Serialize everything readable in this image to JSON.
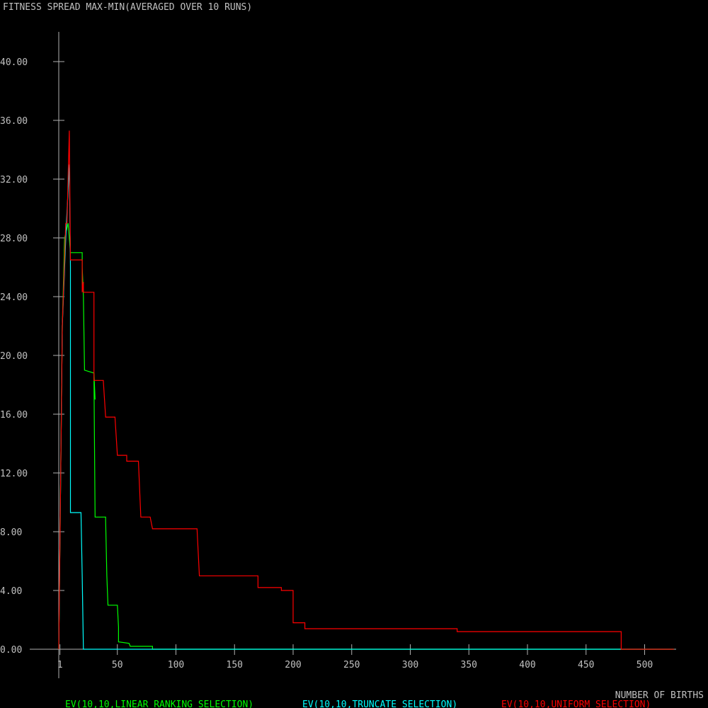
{
  "chart_data": {
    "type": "line",
    "title": "FITNESS SPREAD MAX-MIN(AVERAGED OVER 10 RUNS)",
    "xlabel": "NUMBER OF BIRTHS",
    "ylabel": "",
    "xlim": [
      -10,
      525
    ],
    "ylim": [
      0,
      43
    ],
    "x_ticks": [
      {
        "value": 1,
        "label": "1"
      },
      {
        "value": 50,
        "label": "50"
      },
      {
        "value": 100,
        "label": "100"
      },
      {
        "value": 150,
        "label": "150"
      },
      {
        "value": 200,
        "label": "200"
      },
      {
        "value": 250,
        "label": "250"
      },
      {
        "value": 300,
        "label": "300"
      },
      {
        "value": 350,
        "label": "350"
      },
      {
        "value": 400,
        "label": "400"
      },
      {
        "value": 450,
        "label": "450"
      },
      {
        "value": 500,
        "label": "500"
      }
    ],
    "y_ticks": [
      {
        "value": 0,
        "label": "0.00"
      },
      {
        "value": 4,
        "label": "4.00"
      },
      {
        "value": 8,
        "label": "8.00"
      },
      {
        "value": 12,
        "label": "12.00"
      },
      {
        "value": 16,
        "label": "16.00"
      },
      {
        "value": 20,
        "label": "20.00"
      },
      {
        "value": 24,
        "label": "24.00"
      },
      {
        "value": 28,
        "label": "28.00"
      },
      {
        "value": 32,
        "label": "32.00"
      },
      {
        "value": 36,
        "label": "36.00"
      },
      {
        "value": 40,
        "label": "40.00"
      }
    ],
    "grid": false,
    "legend_position": "bottom",
    "series": [
      {
        "name": "EV(10,10,LINEAR RANKING SELECTION)",
        "color": "#00ff00",
        "points": [
          [
            0,
            0
          ],
          [
            1,
            7.3
          ],
          [
            3,
            22
          ],
          [
            5,
            28
          ],
          [
            8,
            29
          ],
          [
            9,
            28
          ],
          [
            10,
            27
          ],
          [
            20,
            27
          ],
          [
            20,
            26
          ],
          [
            21,
            24
          ],
          [
            22,
            19
          ],
          [
            30,
            18.8
          ],
          [
            31,
            17
          ],
          [
            30,
            18.8
          ],
          [
            30,
            18.5
          ],
          [
            31,
            9
          ],
          [
            40,
            9
          ],
          [
            40,
            8.8
          ],
          [
            41,
            5
          ],
          [
            42,
            3
          ],
          [
            50,
            3
          ],
          [
            51,
            1.5
          ],
          [
            51,
            0.5
          ],
          [
            60,
            0.4
          ],
          [
            61,
            0.2
          ],
          [
            80,
            0.2
          ],
          [
            80,
            0
          ],
          [
            525,
            0
          ]
        ]
      },
      {
        "name": "EV(10,10,TRUNCATE SELECTION)",
        "color": "#00ffff",
        "points": [
          [
            0,
            0
          ],
          [
            1,
            7.3
          ],
          [
            3,
            22
          ],
          [
            6,
            28
          ],
          [
            9,
            33
          ],
          [
            10,
            26
          ],
          [
            10,
            9.3
          ],
          [
            19,
            9.3
          ],
          [
            20,
            5
          ],
          [
            21,
            0
          ],
          [
            525,
            0
          ]
        ]
      },
      {
        "name": "EV(10,10,UNIFORM SELECTION)",
        "color": "#ff0000",
        "points": [
          [
            0,
            0
          ],
          [
            1,
            7.3
          ],
          [
            3,
            22
          ],
          [
            6,
            29
          ],
          [
            7,
            29
          ],
          [
            9,
            35.3
          ],
          [
            10,
            26.5
          ],
          [
            20,
            26.5
          ],
          [
            20,
            24.3
          ],
          [
            21,
            25
          ],
          [
            21,
            24.3
          ],
          [
            30,
            24.3
          ],
          [
            30,
            18.3
          ],
          [
            38,
            18.3
          ],
          [
            40,
            15.8
          ],
          [
            48,
            15.8
          ],
          [
            50,
            13.2
          ],
          [
            58,
            13.2
          ],
          [
            58,
            12.8
          ],
          [
            68,
            12.8
          ],
          [
            70,
            9
          ],
          [
            78,
            9
          ],
          [
            80,
            8.2
          ],
          [
            118,
            8.2
          ],
          [
            120,
            5
          ],
          [
            170,
            5
          ],
          [
            170,
            4.2
          ],
          [
            190,
            4.2
          ],
          [
            190,
            4
          ],
          [
            200,
            4
          ],
          [
            200,
            1.8
          ],
          [
            210,
            1.8
          ],
          [
            210,
            1.4
          ],
          [
            340,
            1.4
          ],
          [
            340,
            1.2
          ],
          [
            480,
            1.2
          ],
          [
            480,
            0
          ],
          [
            525,
            0
          ]
        ]
      }
    ]
  }
}
